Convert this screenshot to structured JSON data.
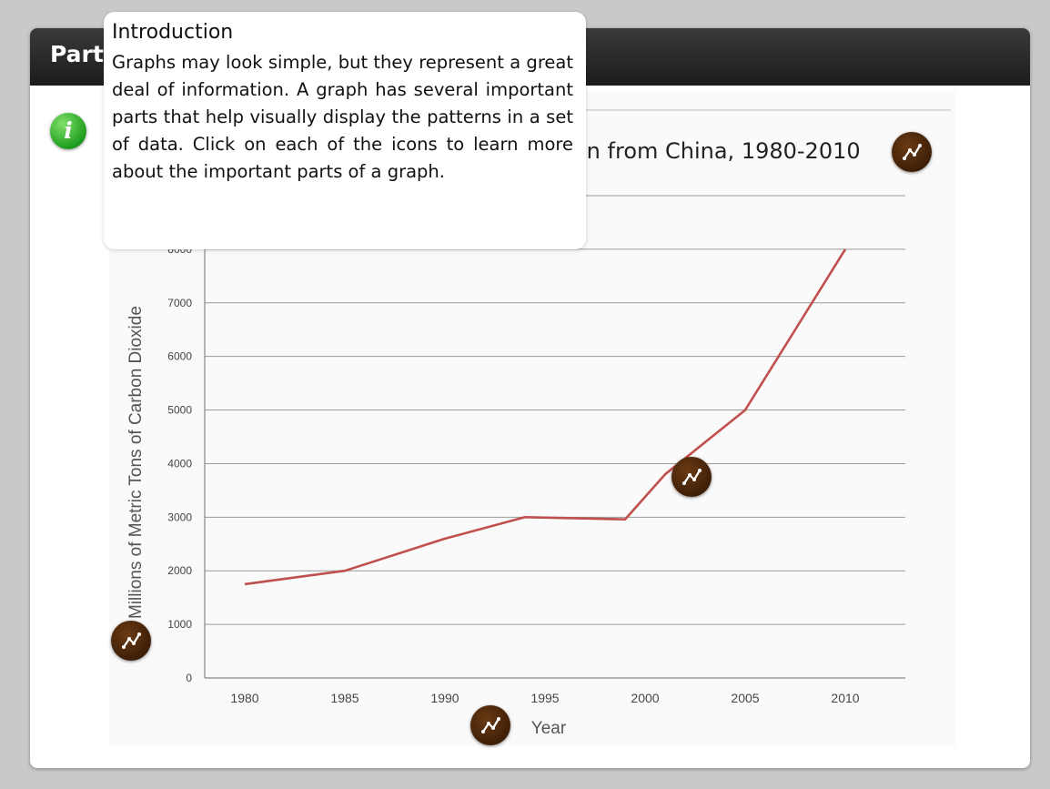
{
  "panel": {
    "title": "Parts of a Graph"
  },
  "chart_title": "on from China, 1980-2010",
  "tooltip": {
    "title": "Introduction",
    "body": "Graphs may look simple, but they represent a great deal of information. A graph has several important parts that help visually display the patterns in a set of data. Click on each of the  icons to learn more about the important parts of a graph."
  },
  "icons": {
    "info": "info-icon",
    "hotspot": "line-graph-icon"
  },
  "colors": {
    "line": "#c0504d",
    "hotspot": "#4a2409",
    "info": "#2fa52f",
    "header": "#2a2a2a"
  },
  "chart_data": {
    "type": "line",
    "title": "",
    "xlabel": "Year",
    "ylabel": "Millions of Metric Tons of Carbon Dioxide",
    "x": [
      1980,
      1985,
      1990,
      1995,
      2000,
      2005,
      2010
    ],
    "x_ticks": [
      "1980",
      "1985",
      "1990",
      "1995",
      "2000",
      "2005",
      "2010"
    ],
    "y_ticks": [
      "0",
      "1000",
      "2000",
      "3000",
      "4000",
      "5000",
      "6000",
      "7000",
      "8000"
    ],
    "ylim": [
      0,
      9000
    ],
    "grid": true,
    "series": [
      {
        "points": [
          [
            1980,
            1750
          ],
          [
            1985,
            2000
          ],
          [
            1990,
            2600
          ],
          [
            1994,
            3000
          ],
          [
            1999,
            2960
          ],
          [
            2001,
            3800
          ],
          [
            2005,
            5000
          ],
          [
            2010,
            8000
          ]
        ]
      }
    ]
  }
}
